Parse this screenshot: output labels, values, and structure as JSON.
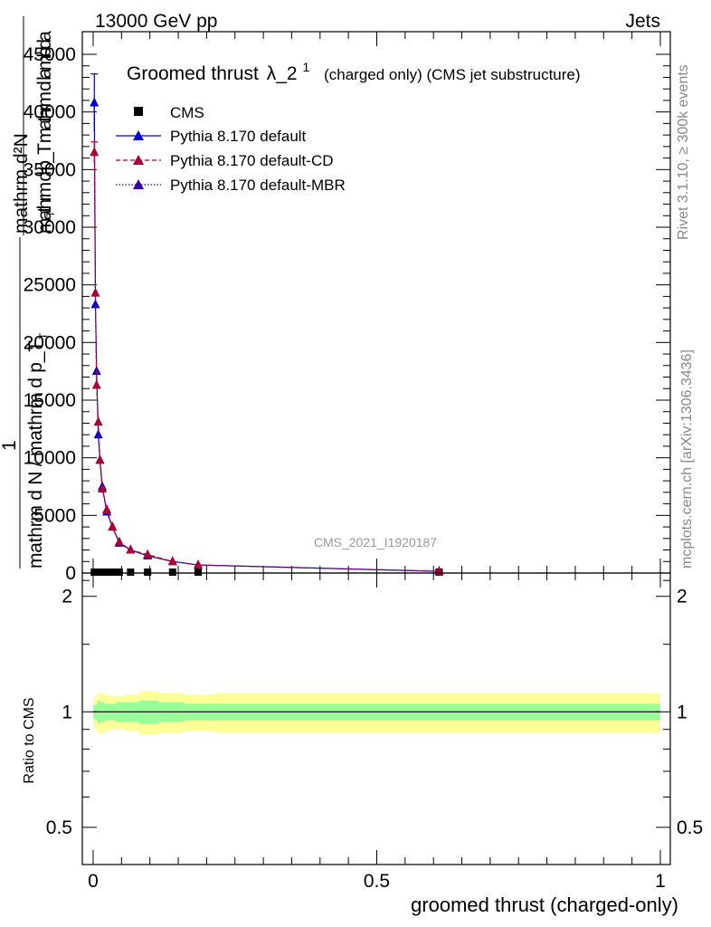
{
  "header": {
    "left": "13000 GeV pp",
    "right": "Jets"
  },
  "side": {
    "rivet": "Rivet 3.1.10, ≥ 300k events",
    "mcplots": "mcplots.cern.ch [arXiv:1306.3436]"
  },
  "chart_data": [
    {
      "type": "scatter",
      "title": "Groomed thrust",
      "title_symbol": "λ_2",
      "title_superscript": "1",
      "title_note": "(charged only) (CMS jet substructure)",
      "ylabel_top": "mathrm d²N",
      "ylabel_mid": "mathrm d p_T mathrm d lambda",
      "ylabel_sub": "T",
      "ylabel_one": "1",
      "ylabel_bottom": "mathrm d N / mathrm d p_T",
      "ylabel_sub2": "T",
      "watermark": "CMS_2021_I1920187",
      "xlim": [
        0,
        1
      ],
      "ylim": [
        0,
        45000
      ],
      "yticks": [
        0,
        5000,
        10000,
        15000,
        20000,
        25000,
        30000,
        35000,
        40000,
        45000
      ],
      "ytick_labels": [
        "0",
        "5000",
        "10000",
        "15000",
        "20000",
        "25000",
        "30000",
        "35000",
        "40000",
        "45000"
      ],
      "legend_position": "top-left",
      "series": [
        {
          "name": "CMS",
          "color": "#000000",
          "marker": "square",
          "x": [
            0.002,
            0.006,
            0.01,
            0.016,
            0.024,
            0.034,
            0.046,
            0.066,
            0.096,
            0.14,
            0.185,
            0.61
          ],
          "y": [
            0,
            0,
            0,
            0,
            0,
            0,
            0,
            0,
            0,
            0,
            0,
            0
          ]
        },
        {
          "name": "Pythia 8.170 default",
          "color": "#0000cc",
          "marker": "triangle",
          "line": "solid",
          "x": [
            0.002,
            0.004,
            0.006,
            0.009,
            0.012,
            0.016,
            0.024,
            0.034,
            0.046,
            0.066,
            0.096,
            0.14,
            0.185,
            0.61
          ],
          "y": [
            40800,
            23300,
            17500,
            12000,
            9800,
            7500,
            5300,
            4000,
            2600,
            2000,
            1500,
            1000,
            700,
            150
          ],
          "err": [
            2500,
            0,
            0,
            0,
            0,
            0,
            0,
            0,
            0,
            0,
            0,
            0,
            0,
            0
          ]
        },
        {
          "name": "Pythia 8.170 default-CD",
          "color": "#aa0033",
          "marker": "triangle",
          "line": "dashed",
          "x": [
            0.002,
            0.004,
            0.006,
            0.009,
            0.012,
            0.016,
            0.024,
            0.034,
            0.046,
            0.066,
            0.096,
            0.14,
            0.185,
            0.61
          ],
          "y": [
            36500,
            24300,
            16300,
            13100,
            9800,
            7300,
            5500,
            4000,
            2700,
            2000,
            1600,
            1000,
            700,
            150
          ],
          "err": [
            900,
            0,
            0,
            0,
            0,
            0,
            0,
            0,
            0,
            0,
            0,
            0,
            0,
            0
          ]
        },
        {
          "name": "Pythia 8.170 default-MBR",
          "color": "#3300aa",
          "marker": "triangle",
          "line": "dotted",
          "x": [],
          "y": []
        }
      ]
    },
    {
      "type": "area",
      "ylabel": "Ratio to CMS",
      "xlabel": "groomed thrust (charged-only)",
      "xlim": [
        0,
        1
      ],
      "ylim": [
        0.4,
        2.3
      ],
      "yticks": [
        0.5,
        1,
        2
      ],
      "ytick_labels": [
        "0.5",
        "1",
        "2"
      ],
      "xticks": [
        0,
        0.5,
        1
      ],
      "xtick_labels": [
        "0",
        "0.5",
        "1"
      ],
      "reference_line": 1,
      "bands": {
        "edges": [
          0.0,
          0.004,
          0.008,
          0.012,
          0.02,
          0.03,
          0.04,
          0.055,
          0.08,
          0.115,
          0.16,
          0.215,
          1.0
        ],
        "yellow_half": [
          0.09,
          0.1,
          0.12,
          0.12,
          0.11,
          0.1,
          0.1,
          0.11,
          0.13,
          0.12,
          0.11,
          0.12
        ],
        "green_half": [
          0.04,
          0.05,
          0.07,
          0.06,
          0.05,
          0.05,
          0.06,
          0.06,
          0.07,
          0.06,
          0.05,
          0.05
        ],
        "yellow_color": "#ffff99",
        "green_color": "#99ff99"
      }
    }
  ]
}
